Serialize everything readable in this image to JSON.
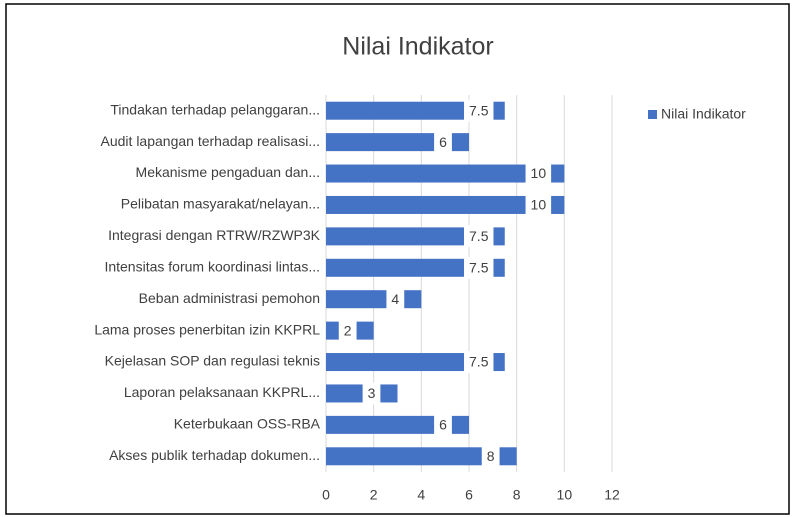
{
  "chart_data": {
    "type": "bar",
    "orientation": "horizontal",
    "title": "Nilai Indikator",
    "categories": [
      "Tindakan terhadap pelanggaran...",
      "Audit lapangan terhadap realisasi...",
      "Mekanisme pengaduan dan...",
      "Pelibatan masyarakat/nelayan...",
      "Integrasi dengan RTRW/RZWP3K",
      "Intensitas forum koordinasi lintas...",
      "Beban administrasi pemohon",
      "Lama proses penerbitan izin KKPRL",
      "Kejelasan SOP dan regulasi teknis",
      "Laporan pelaksanaan KKPRL...",
      "Keterbukaan OSS-RBA",
      "Akses publik terhadap dokumen..."
    ],
    "series": [
      {
        "name": "Nilai Indikator",
        "color": "#4472c4",
        "values": [
          7.5,
          6,
          10,
          10,
          7.5,
          7.5,
          4,
          2,
          7.5,
          3,
          6,
          8
        ]
      }
    ],
    "xlim": [
      0,
      12
    ],
    "xticks": [
      0,
      2,
      4,
      6,
      8,
      10,
      12
    ],
    "grid": true,
    "legend": "right"
  }
}
